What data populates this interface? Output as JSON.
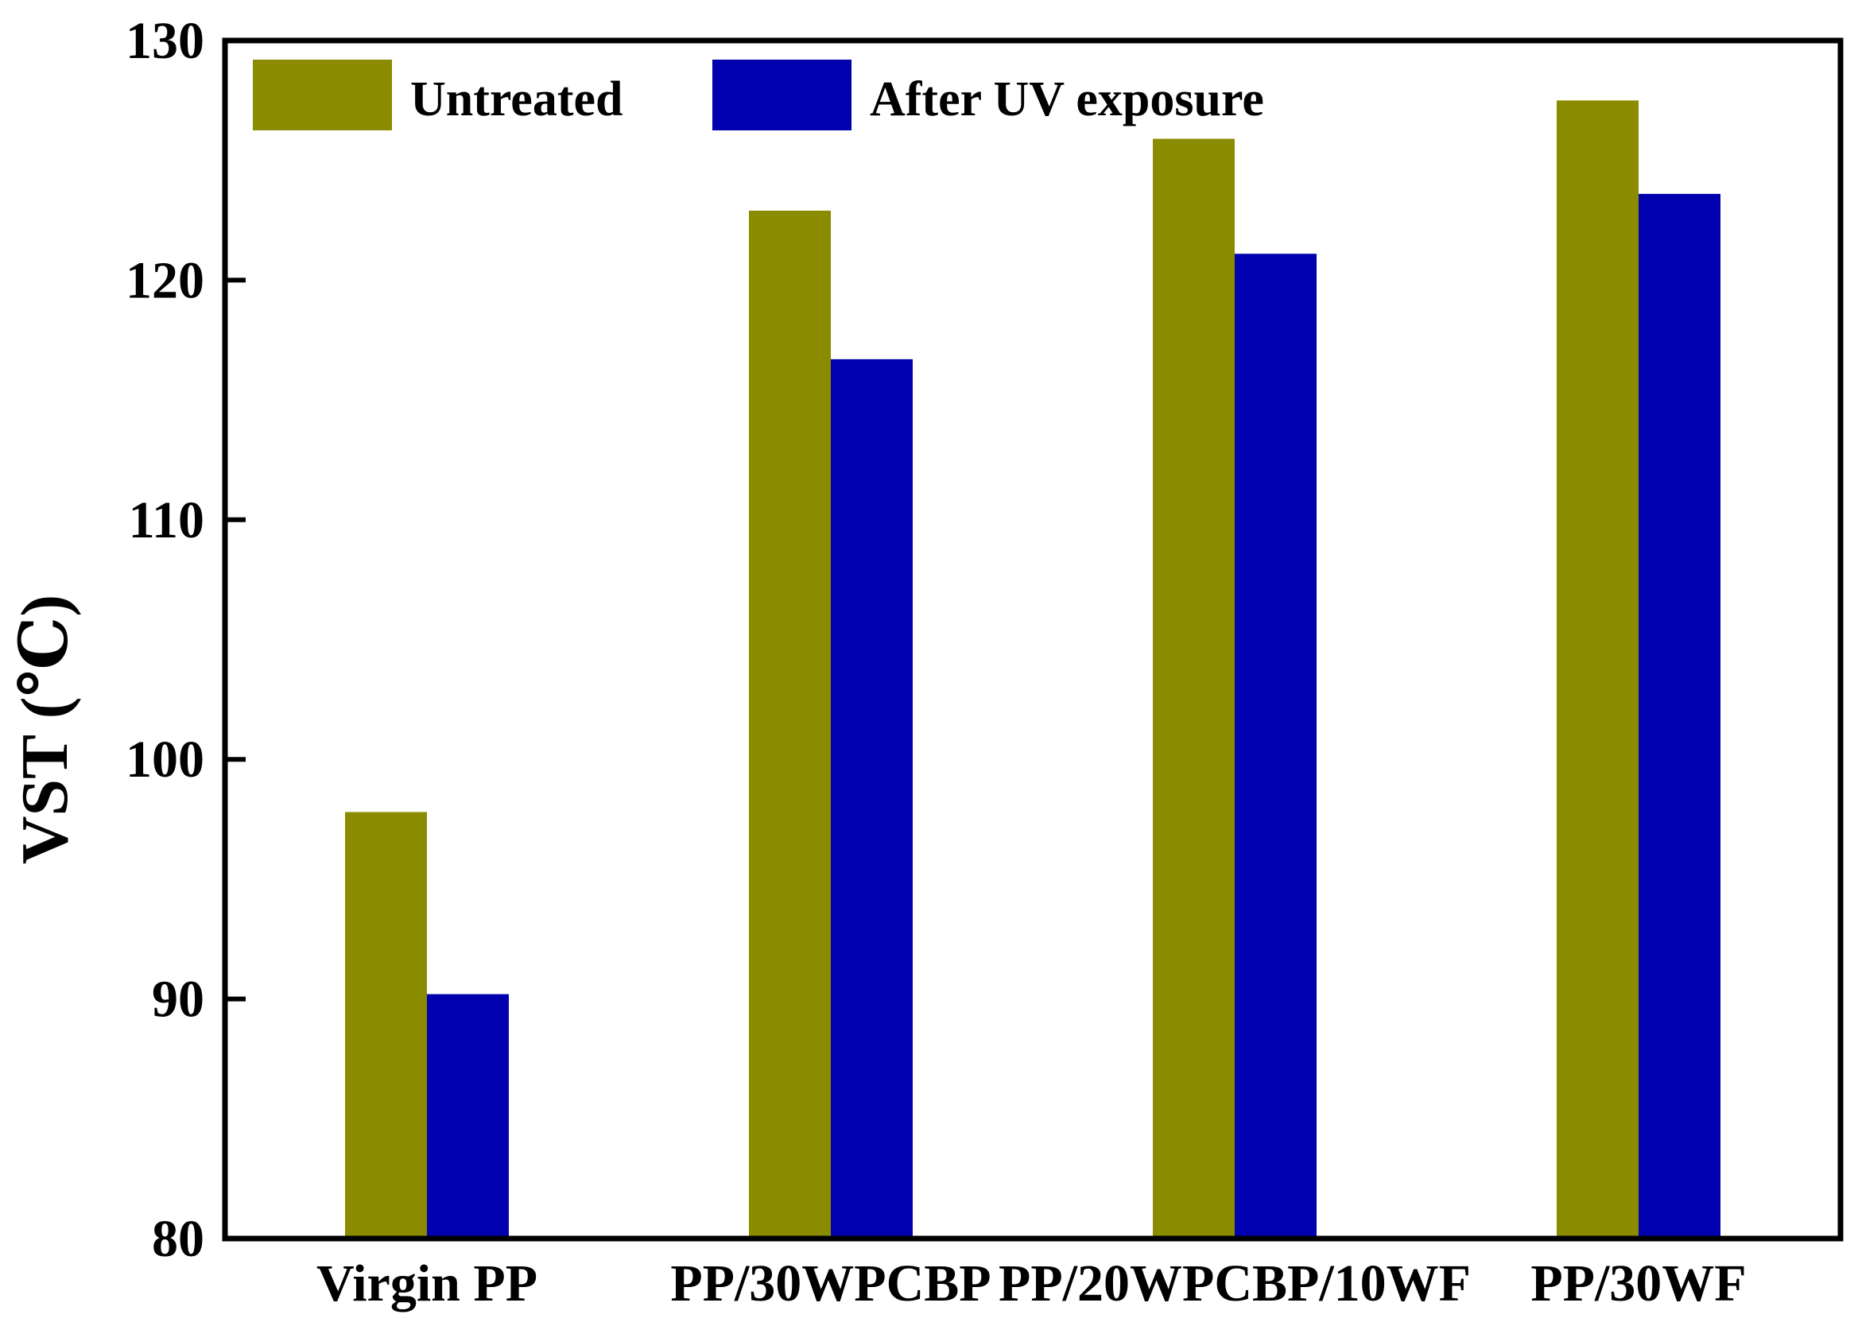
{
  "chart_data": {
    "type": "bar",
    "title": "",
    "xlabel": "",
    "ylabel": "VST (℃)",
    "ylim": [
      80,
      130
    ],
    "yticks": [
      80,
      90,
      100,
      110,
      120,
      130
    ],
    "grid": false,
    "legend_position": "top-left",
    "categories": [
      "Virgin PP",
      "PP/30WPCBP",
      "PP/20WPCBP/10WF",
      "PP/30WF"
    ],
    "series": [
      {
        "name": "Untreated",
        "color": "#8B8B00",
        "values": [
          97.8,
          122.9,
          125.9,
          127.5
        ]
      },
      {
        "name": "After UV exposure",
        "color": "#0000AE",
        "values": [
          90.2,
          116.7,
          121.1,
          123.6
        ]
      }
    ]
  }
}
